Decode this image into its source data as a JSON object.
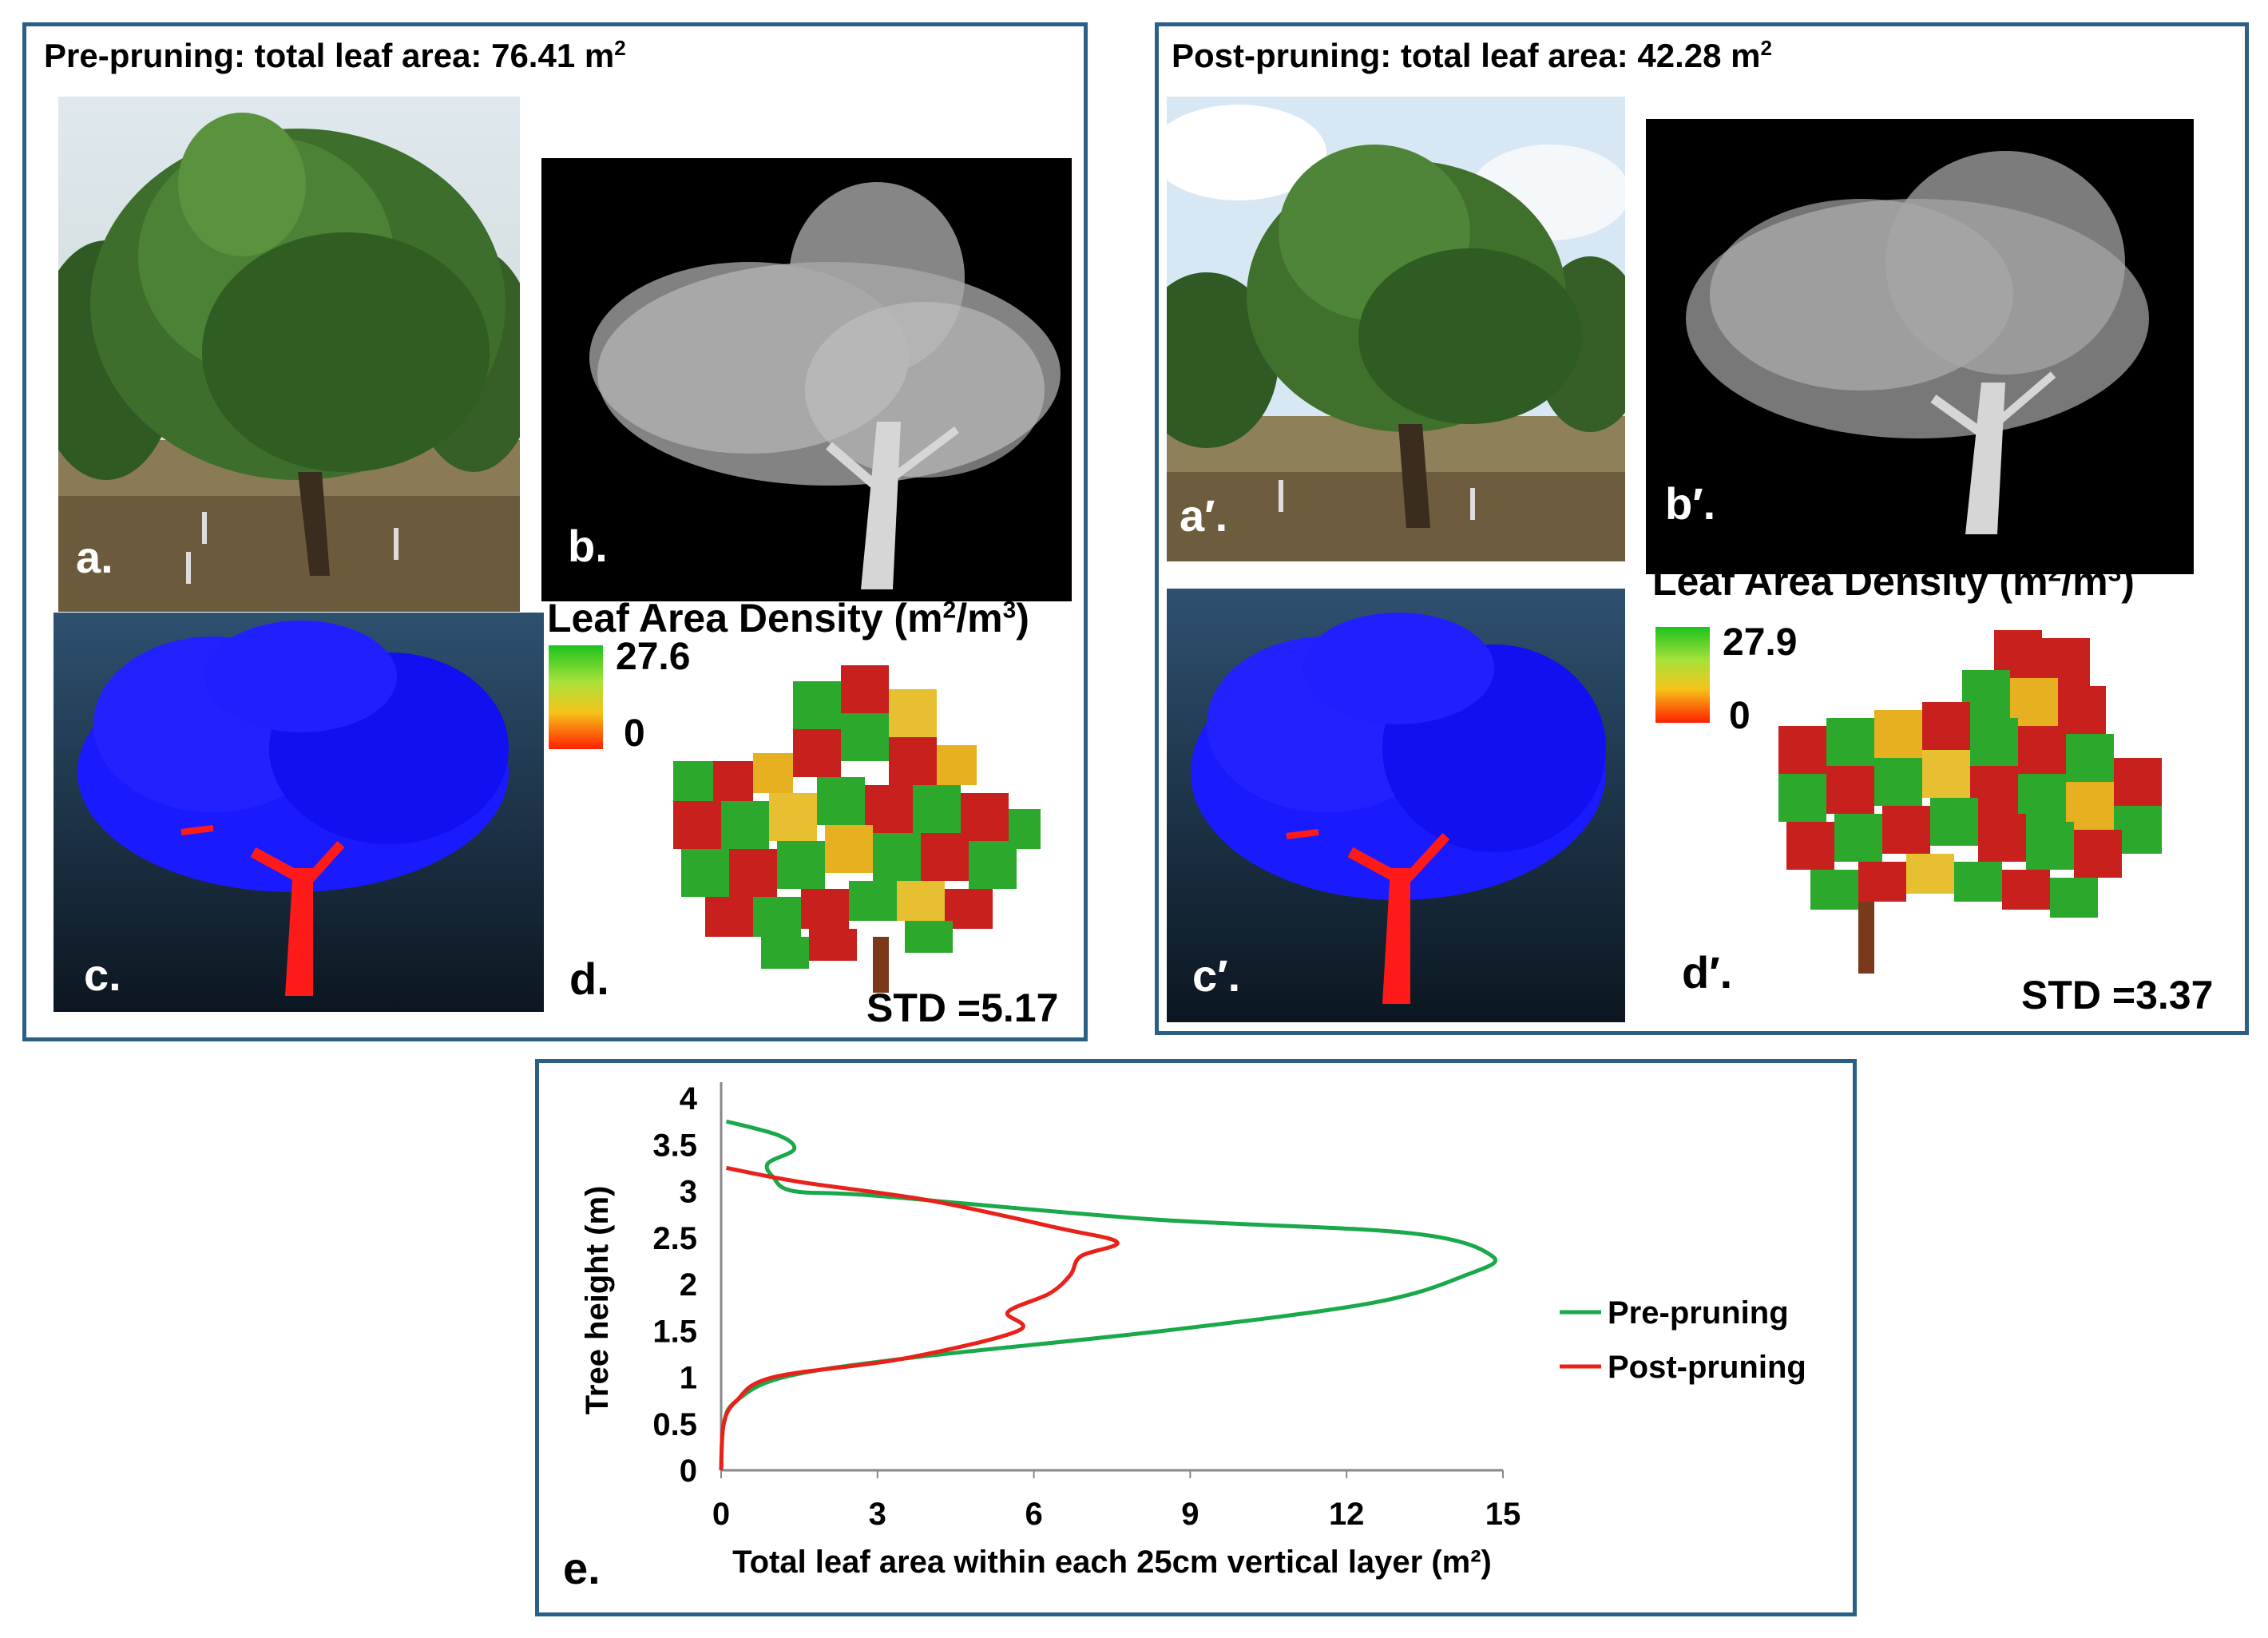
{
  "panels": {
    "pre": {
      "title_prefix": "Pre-pruning: total leaf area: 76.41 m",
      "title_sup": "2",
      "label_a": "a.",
      "label_b": "b.",
      "label_c": "c.",
      "label_d": "d.",
      "lad_title_prefix": "Leaf Area Density (m",
      "lad_title_sup1": "2",
      "lad_title_mid": "/m",
      "lad_title_sup2": "3",
      "lad_title_suffix": ")",
      "lad_max": "27.6",
      "lad_min": "0",
      "std": "STD =5.17"
    },
    "post": {
      "title_prefix": "Post-pruning: total leaf area: 42.28 m",
      "title_sup": "2",
      "label_a": "a′.",
      "label_b": "b′.",
      "label_c": "c′.",
      "label_d": "d′.",
      "lad_title_prefix": "Leaf Area Density (m",
      "lad_title_sup1": "2",
      "lad_title_mid": "/m",
      "lad_title_sup2": "3",
      "lad_title_suffix": ")",
      "lad_max": "27.9",
      "lad_min": "0",
      "std": "STD =3.37"
    }
  },
  "chart_label": "e.",
  "chart_data": {
    "type": "line",
    "xlabel": "Total leaf area within each 25cm vertical layer (m²)",
    "ylabel": "Tree height (m)",
    "xlim": [
      0,
      15
    ],
    "ylim": [
      0,
      4
    ],
    "xticks": [
      "0",
      "3",
      "6",
      "9",
      "12",
      "15"
    ],
    "yticks": [
      "0",
      "0.5",
      "1",
      "1.5",
      "2",
      "2.5",
      "3",
      "3.5",
      "4"
    ],
    "grid": false,
    "legend_position": "right",
    "series": [
      {
        "name": "Pre-pruning",
        "color": "#19a84a",
        "points": [
          [
            0,
            0
          ],
          [
            0.05,
            0.5
          ],
          [
            0.3,
            0.75
          ],
          [
            1.2,
            1.0
          ],
          [
            3.5,
            1.2
          ],
          [
            8.5,
            1.5
          ],
          [
            12.5,
            1.8
          ],
          [
            14.3,
            2.1
          ],
          [
            14.8,
            2.3
          ],
          [
            13.2,
            2.55
          ],
          [
            8.2,
            2.7
          ],
          [
            3.0,
            2.95
          ],
          [
            1.4,
            3.0
          ],
          [
            1.0,
            3.15
          ],
          [
            0.9,
            3.3
          ],
          [
            1.4,
            3.45
          ],
          [
            1.1,
            3.6
          ],
          [
            0.1,
            3.75
          ]
        ]
      },
      {
        "name": "Post-pruning",
        "color": "#e8211a",
        "points": [
          [
            0,
            0
          ],
          [
            0.05,
            0.5
          ],
          [
            0.3,
            0.75
          ],
          [
            1.0,
            1.0
          ],
          [
            3.5,
            1.2
          ],
          [
            5.7,
            1.5
          ],
          [
            5.5,
            1.7
          ],
          [
            6.3,
            1.9
          ],
          [
            6.7,
            2.1
          ],
          [
            6.9,
            2.3
          ],
          [
            7.6,
            2.45
          ],
          [
            6.5,
            2.6
          ],
          [
            4.0,
            2.9
          ],
          [
            1.5,
            3.1
          ],
          [
            0.1,
            3.25
          ]
        ]
      }
    ]
  }
}
